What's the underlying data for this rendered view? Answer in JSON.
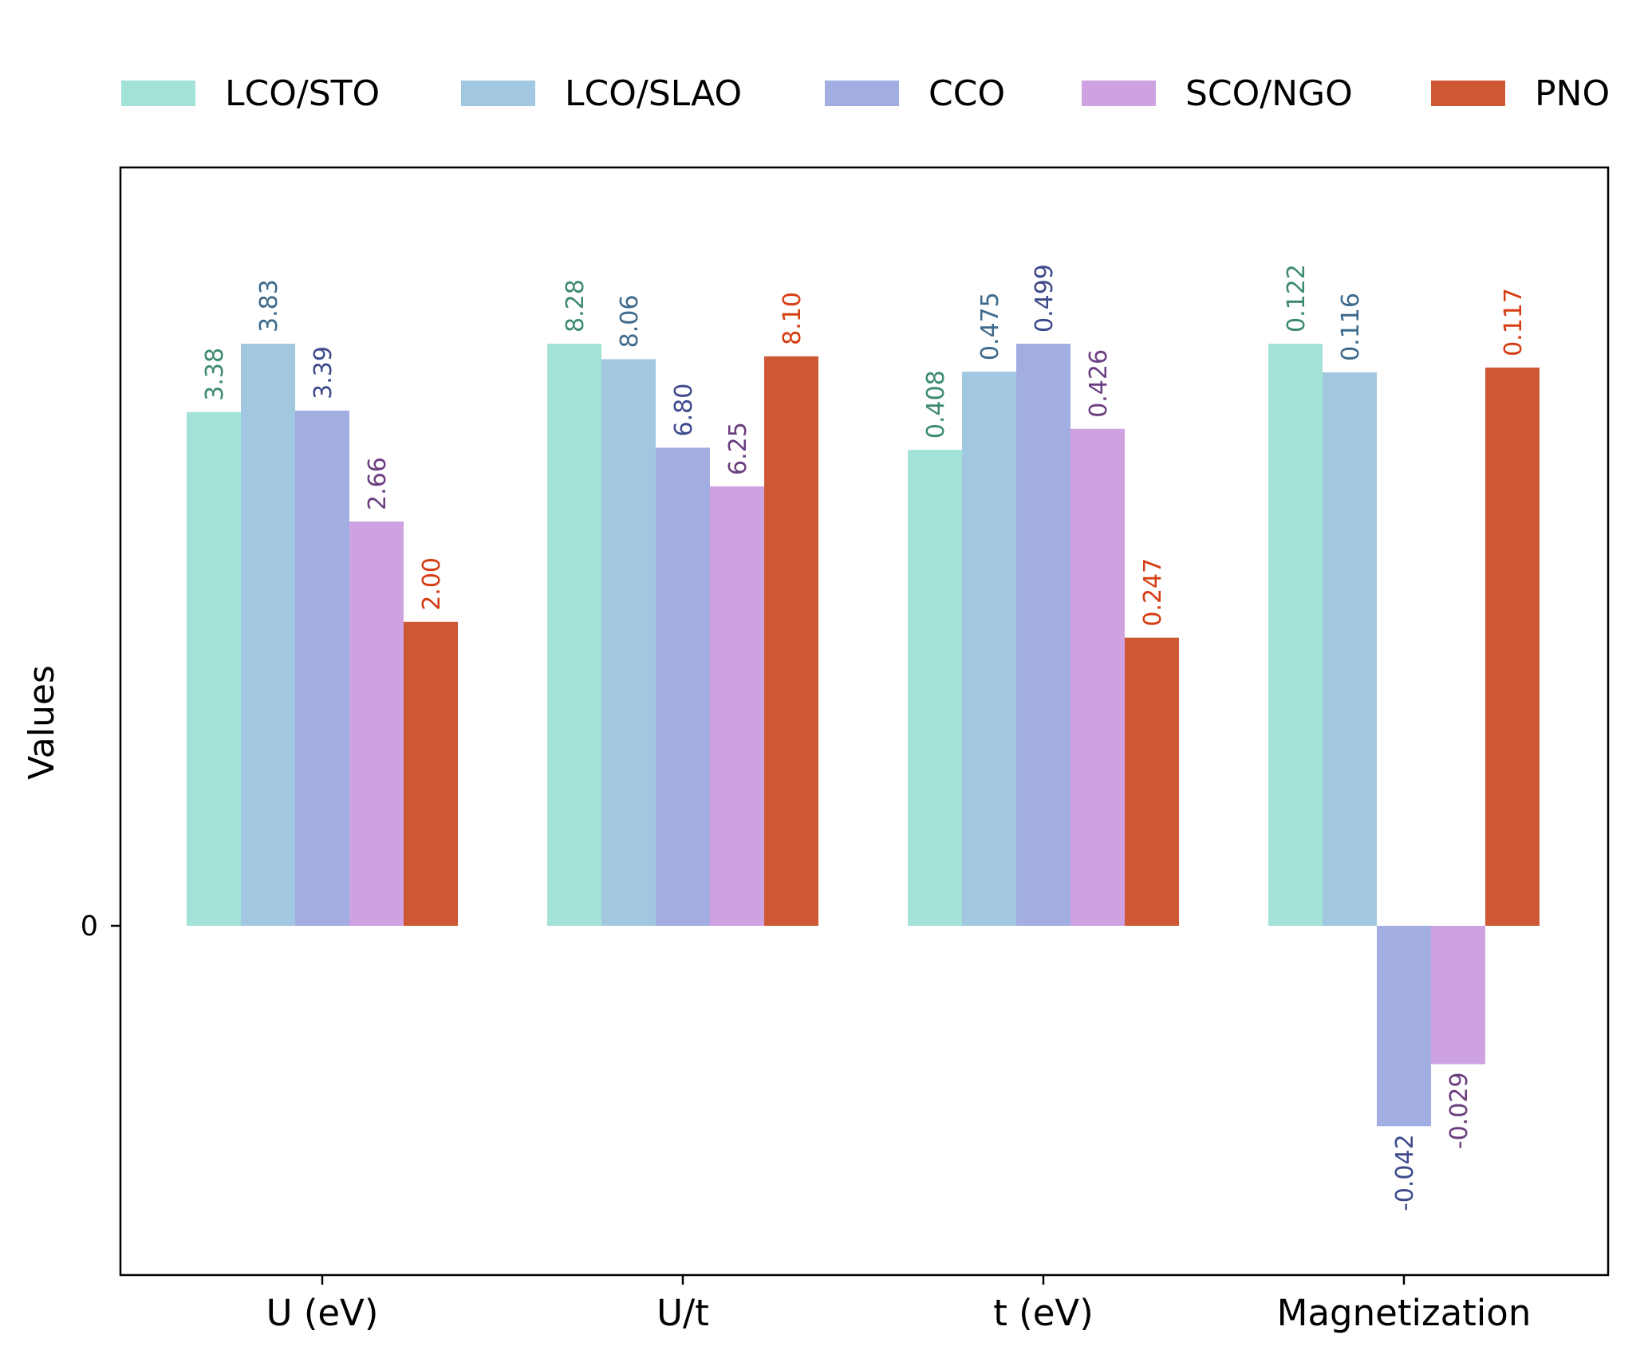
{
  "chart_data": {
    "type": "bar",
    "subtype": "grouped-normalized",
    "categories": [
      "U (eV)",
      "U/t",
      "t (eV)",
      "Magnetization"
    ],
    "series": [
      {
        "name": "LCO/STO",
        "color": "#a3e2d7",
        "label_color": "#3d8a73",
        "values": [
          3.38,
          8.28,
          0.408,
          0.122
        ],
        "labels": [
          "3.38",
          "8.28",
          "0.408",
          "0.122"
        ]
      },
      {
        "name": "LCO/SLAO",
        "color": "#a2c7e1",
        "label_color": "#3e6a8c",
        "values": [
          3.83,
          8.06,
          0.475,
          0.116
        ],
        "labels": [
          "3.83",
          "8.06",
          "0.475",
          "0.116"
        ]
      },
      {
        "name": "CCO",
        "color": "#a2ade1",
        "label_color": "#3e4a8c",
        "values": [
          3.39,
          6.8,
          0.499,
          -0.042
        ],
        "labels": [
          "3.39",
          "6.80",
          "0.499",
          "-0.042"
        ]
      },
      {
        "name": "SCO/NGO",
        "color": "#cea2e1",
        "label_color": "#6b3e80",
        "values": [
          2.66,
          6.25,
          0.426,
          -0.029
        ],
        "labels": [
          "2.66",
          "6.25",
          "0.426",
          "-0.029"
        ]
      },
      {
        "name": "PNO",
        "color": "#cf5834",
        "label_color": "#d63c12",
        "values": [
          2.0,
          8.1,
          0.247,
          0.117
        ],
        "labels": [
          "2.00",
          "8.10",
          "0.247",
          "0.117"
        ]
      }
    ],
    "ylabel": "Values",
    "xlabel": "",
    "yticks": [
      "0"
    ],
    "legend": "top",
    "grid": false
  }
}
